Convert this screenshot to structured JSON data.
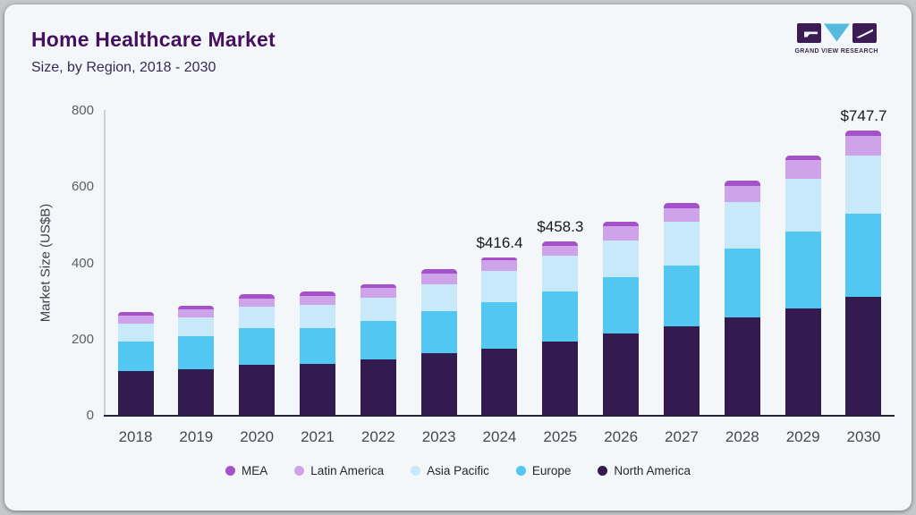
{
  "header": {
    "title": "Home Healthcare Market",
    "subtitle": "Size, by Region, 2018 - 2030"
  },
  "logo": {
    "text": "GRAND VIEW RESEARCH",
    "dark_color": "#3b1c55",
    "accent_color": "#54b9dd"
  },
  "chart_data": {
    "type": "bar",
    "stacked": true,
    "title": "Home Healthcare Market Size, by Region, 2018 - 2030",
    "xlabel": "",
    "ylabel": "Market Size (US$B)",
    "ylim": [
      0,
      800
    ],
    "yticks": [
      0,
      200,
      400,
      600,
      800
    ],
    "grid": false,
    "legend_position": "bottom",
    "categories": [
      "2018",
      "2019",
      "2020",
      "2021",
      "2022",
      "2023",
      "2024",
      "2025",
      "2026",
      "2027",
      "2028",
      "2029",
      "2030"
    ],
    "series": [
      {
        "name": "North America",
        "color": "#331a4f",
        "values": [
          117,
          123,
          134,
          137,
          148,
          164,
          175,
          195,
          215,
          235,
          258,
          282,
          312
        ]
      },
      {
        "name": "Europe",
        "color": "#52c7f2",
        "values": [
          78,
          86,
          96,
          94,
          100,
          110,
          123,
          131,
          148,
          160,
          180,
          202,
          219
        ]
      },
      {
        "name": "Asia Pacific",
        "color": "#c7e9fa",
        "values": [
          47,
          49,
          56,
          61,
          62,
          71,
          82.4,
          93.3,
          96,
          115,
          123,
          137,
          150.7
        ]
      },
      {
        "name": "Latin America",
        "color": "#cfa3e9",
        "values": [
          22,
          22,
          22,
          23,
          26,
          28,
          27,
          27,
          38,
          35,
          41,
          49,
          53
        ]
      },
      {
        "name": "MEA",
        "color": "#a552ca",
        "values": [
          9,
          9,
          12,
          11,
          10,
          11,
          9,
          12,
          12,
          14,
          14,
          12,
          13
        ]
      }
    ],
    "totals_labeled": [
      {
        "category": "2024",
        "label": "$416.4"
      },
      {
        "category": "2025",
        "label": "$458.3"
      },
      {
        "category": "2030",
        "label": "$747.7"
      }
    ],
    "legend_order": [
      "MEA",
      "Latin America",
      "Asia Pacific",
      "Europe",
      "North America"
    ]
  }
}
